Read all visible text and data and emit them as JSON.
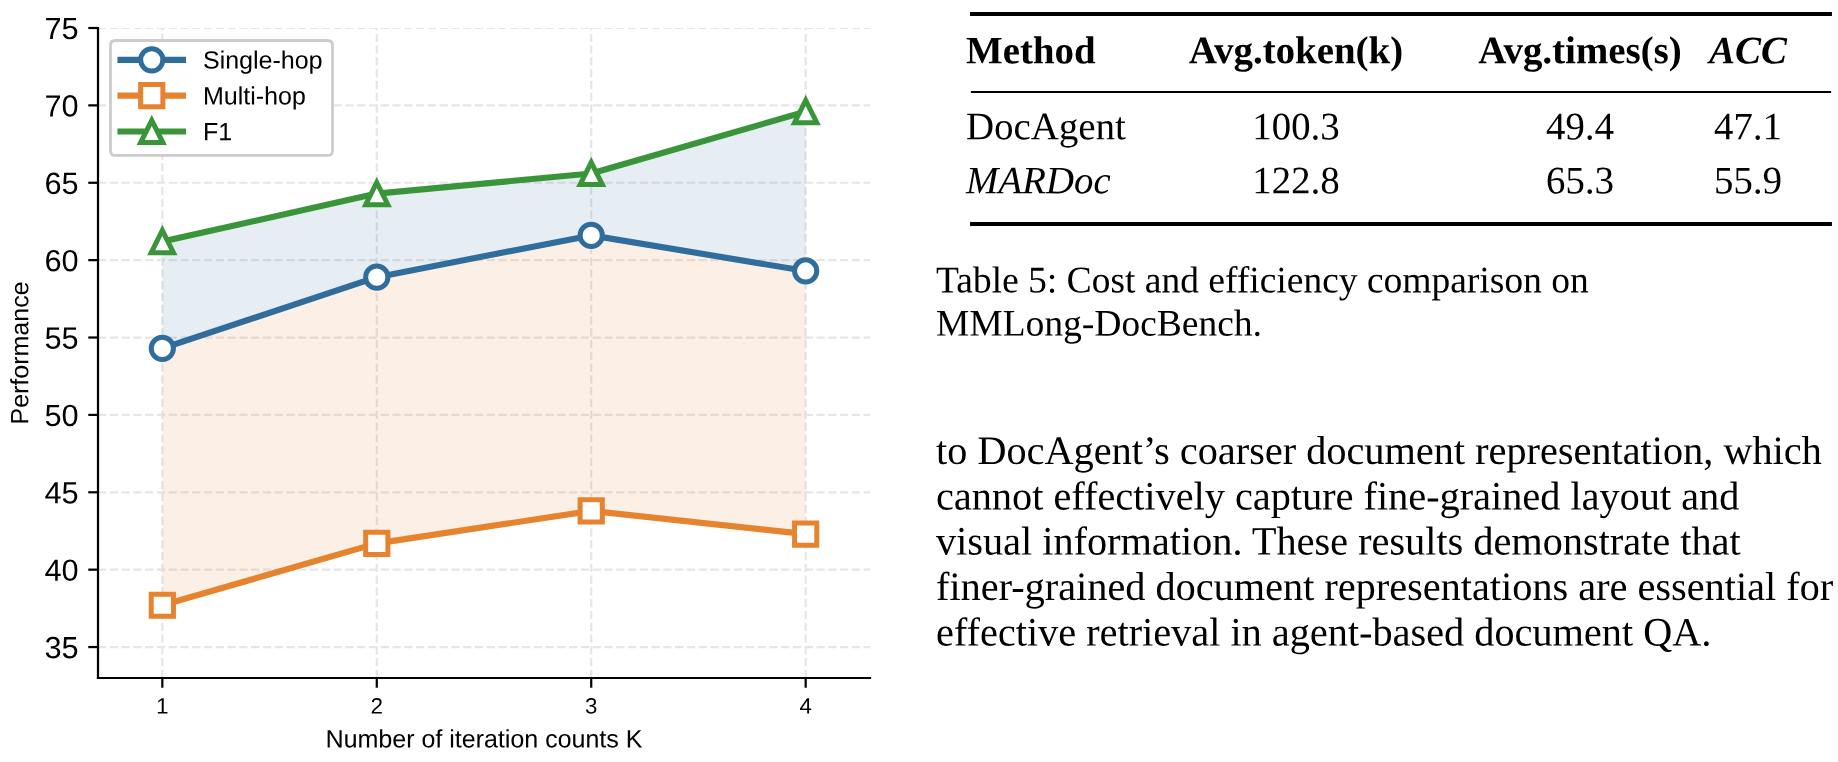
{
  "chart_data": [
    {
      "type": "line",
      "xlabel": "Number of iteration counts K",
      "ylabel": "Performance",
      "x": [
        1,
        2,
        3,
        4
      ],
      "xlim": [
        0.7,
        4.3
      ],
      "xticks": [
        1,
        2,
        3,
        4
      ],
      "ylim": [
        33,
        75
      ],
      "yticks": [
        35,
        40,
        45,
        50,
        55,
        60,
        65,
        70,
        75
      ],
      "grid": true,
      "legend": "top left",
      "line_style": "solid",
      "series": [
        {
          "name": "Single-hop",
          "color": "#2f6d9c",
          "marker": "circle",
          "values": [
            54.3,
            58.9,
            61.6,
            59.3
          ],
          "lower": [
            54.3,
            58.9,
            61.6,
            59.3
          ],
          "upper": [
            61.2,
            64.3,
            65.6,
            69.6
          ]
        },
        {
          "name": "Multi-hop",
          "color": "#e6832e",
          "marker": "square",
          "values": [
            37.7,
            41.7,
            43.8,
            42.3
          ],
          "lower": [
            37.7,
            41.7,
            43.8,
            42.3
          ],
          "upper": [
            54.3,
            58.9,
            61.6,
            59.3
          ]
        },
        {
          "name": "F1",
          "color": "#3a953a",
          "marker": "triangle",
          "values": [
            61.2,
            64.3,
            65.6,
            69.6
          ]
        }
      ]
    },
    {
      "type": "other",
      "ylabel": "Method",
      "categories": [
        "Avg.token(k)",
        "Avg.times(s)",
        "ACC"
      ],
      "y_categories": [
        "DocAgent",
        "MARDoc"
      ],
      "cell_labels": [
        [
          "100.3",
          "49.4",
          "47.1"
        ],
        [
          "122.8",
          "65.3",
          "55.9"
        ]
      ],
      "annotations": [
        "Table 5: Cost and efficiency comparison on MMLong-DocBench.",
        "to DocAgent’s coarser document representation, which cannot effectively capture fine-grained layout and visual information. These results demonstrate that finer-grained document representations are essential for effective retrieval in agent-based document QA."
      ]
    }
  ]
}
